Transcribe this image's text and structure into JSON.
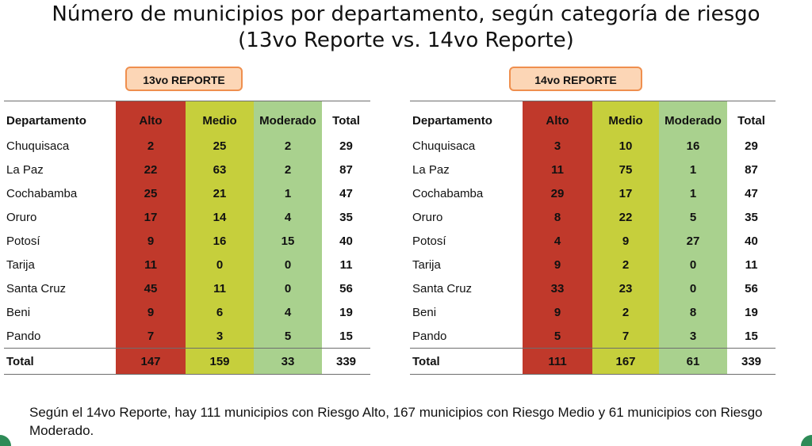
{
  "title": {
    "line1": "Número de municipios por departamento, según categoría de riesgo",
    "line2": "(13vo Reporte vs. 14vo Reporte)"
  },
  "colors": {
    "alto": "#c0392b",
    "medio": "#c6cf3c",
    "moderado": "#a9d18e",
    "badge": "#fcd6b6"
  },
  "columns": [
    "Departamento",
    "Alto",
    "Medio",
    "Moderado",
    "Total"
  ],
  "reports": [
    {
      "badge": "13vo REPORTE",
      "rows": [
        [
          "Chuquisaca",
          "2",
          "25",
          "2",
          "29"
        ],
        [
          "La Paz",
          "22",
          "63",
          "2",
          "87"
        ],
        [
          "Cochabamba",
          "25",
          "21",
          "1",
          "47"
        ],
        [
          "Oruro",
          "17",
          "14",
          "4",
          "35"
        ],
        [
          "Potosí",
          "9",
          "16",
          "15",
          "40"
        ],
        [
          "Tarija",
          "11",
          "0",
          "0",
          "11"
        ],
        [
          "Santa Cruz",
          "45",
          "11",
          "0",
          "56"
        ],
        [
          "Beni",
          "9",
          "6",
          "4",
          "19"
        ],
        [
          "Pando",
          "7",
          "3",
          "5",
          "15"
        ]
      ],
      "total": [
        "Total",
        "147",
        "159",
        "33",
        "339"
      ]
    },
    {
      "badge": "14vo REPORTE",
      "rows": [
        [
          "Chuquisaca",
          "3",
          "10",
          "16",
          "29"
        ],
        [
          "La Paz",
          "11",
          "75",
          "1",
          "87"
        ],
        [
          "Cochabamba",
          "29",
          "17",
          "1",
          "47"
        ],
        [
          "Oruro",
          "8",
          "22",
          "5",
          "35"
        ],
        [
          "Potosí",
          "4",
          "9",
          "27",
          "40"
        ],
        [
          "Tarija",
          "9",
          "2",
          "0",
          "11"
        ],
        [
          "Santa Cruz",
          "33",
          "23",
          "0",
          "56"
        ],
        [
          "Beni",
          "9",
          "2",
          "8",
          "19"
        ],
        [
          "Pando",
          "5",
          "7",
          "3",
          "15"
        ]
      ],
      "total": [
        "Total",
        "111",
        "167",
        "61",
        "339"
      ]
    }
  ],
  "summary": "Según el 14vo Reporte, hay 111 municipios con Riesgo Alto, 167 municipios con Riesgo Medio y 61 municipios con Riesgo Moderado."
}
